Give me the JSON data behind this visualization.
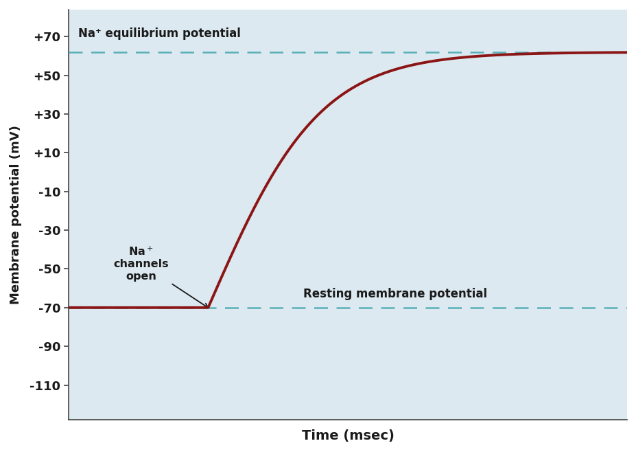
{
  "title": "",
  "xlabel": "Time (msec)",
  "ylabel": "Membrane potential (mV)",
  "figure_bg": "#ffffff",
  "plot_bg": "#dce9f0",
  "curve_color": "#8b1515",
  "curve_linewidth": 2.8,
  "dashed_color": "#5ab0b8",
  "dashed_linewidth": 1.8,
  "resting_potential": -70,
  "equilibrium_potential": 62,
  "ylim": [
    -128,
    84
  ],
  "yticks": [
    -110,
    -90,
    -70,
    -50,
    -30,
    -10,
    10,
    30,
    50,
    70
  ],
  "ytick_labels": [
    "-110",
    "-90",
    "-70",
    "-50",
    "-30",
    "-10",
    "+10",
    "+30",
    "+50",
    "+70"
  ],
  "na_eq_label": "Na⁺ equilibrium potential",
  "resting_label": "Resting membrane potential",
  "na_channels_label": "Na⁺\nchannels\nopen",
  "xlim": [
    0,
    10
  ],
  "inflection_x": 2.5,
  "plateau_value": 62,
  "text_color": "#1a1a1a"
}
